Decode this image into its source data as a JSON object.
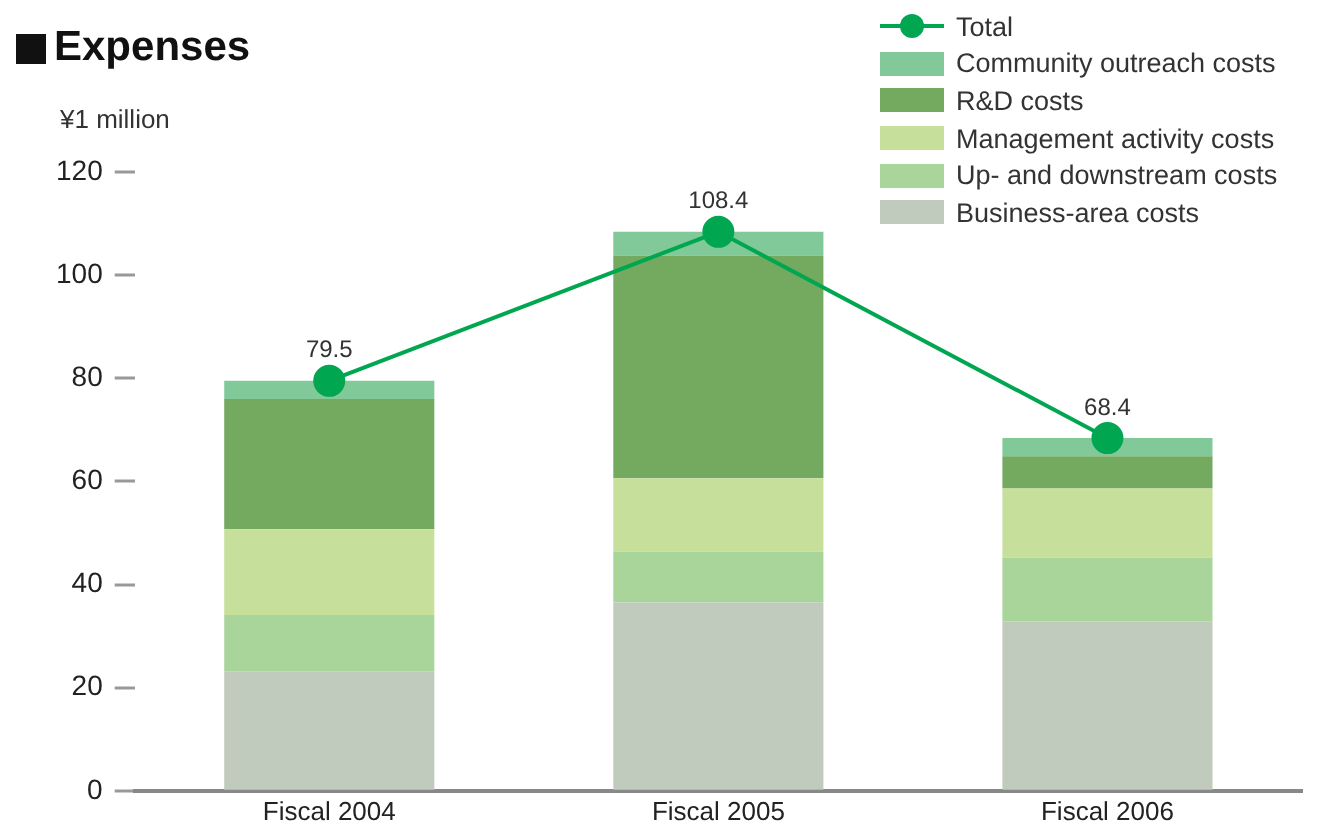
{
  "chart_data": {
    "type": "bar",
    "title": "Expenses",
    "ylabel": "¥1 million",
    "categories": [
      "Fiscal 2004",
      "Fiscal 2005",
      "Fiscal 2006"
    ],
    "stacked": true,
    "ylim": [
      0,
      120
    ],
    "yticks": [
      0,
      20,
      40,
      60,
      80,
      100,
      120
    ],
    "grid": false,
    "legend": "top right",
    "series": [
      {
        "name": "Business-area costs",
        "color": "#c0cabd",
        "values": [
          23.2,
          36.5,
          32.9
        ]
      },
      {
        "name": "Up- and downstream costs",
        "color": "#a9d59a",
        "values": [
          10.9,
          9.9,
          12.3
        ]
      },
      {
        "name": "Management activity costs",
        "color": "#c6df9b",
        "values": [
          16.6,
          14.2,
          13.4
        ]
      },
      {
        "name": "R&D costs",
        "color": "#73aa60",
        "values": [
          25.3,
          43.2,
          6.3
        ]
      },
      {
        "name": "Community outreach costs",
        "color": "#82c99a",
        "values": [
          3.5,
          4.6,
          3.5
        ]
      },
      {
        "name": "Total",
        "type": "line",
        "color": "#00a650",
        "marker": "circle",
        "values": [
          79.5,
          108.4,
          68.4
        ],
        "value_labels": [
          "79.5",
          "108.4",
          "68.4"
        ]
      }
    ]
  }
}
